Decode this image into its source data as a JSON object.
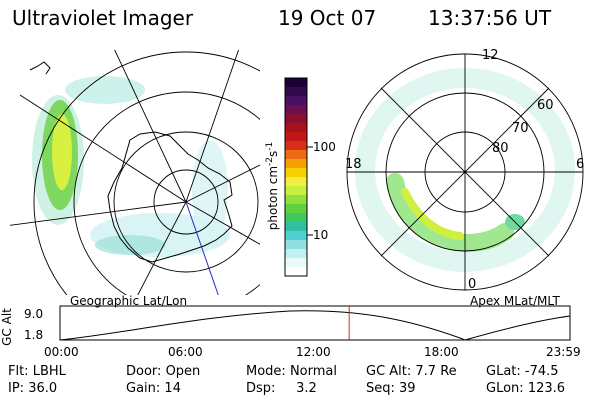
{
  "header": {
    "title": "Ultraviolet Imager",
    "date": "19 Oct 07",
    "time": "13:37:56 UT"
  },
  "left_panel": {
    "label": "Geographic Lat/Lon"
  },
  "right_panel": {
    "label": "Apex MLat/MLT",
    "mlt_labels": {
      "top": "12",
      "bottom": "0",
      "left": "18",
      "right": "6"
    },
    "lat_labels": [
      "60",
      "70",
      "80"
    ]
  },
  "colorbar": {
    "unit_label": "photon cm",
    "unit_sup1": "-2",
    "unit_mid": "s",
    "unit_sup2": "-1",
    "ticks": [
      "100",
      "10"
    ],
    "colors": [
      "#1a0033",
      "#300a4a",
      "#4a1060",
      "#6a1050",
      "#8a1030",
      "#a81020",
      "#c01818",
      "#d83018",
      "#ee6a10",
      "#f5a000",
      "#f8d000",
      "#f0f040",
      "#c8f040",
      "#90e040",
      "#60d040",
      "#40c860",
      "#30c0a0",
      "#50d0d0",
      "#90e0e0",
      "#c0f0f0",
      "#e8fafa",
      "#ffffff"
    ]
  },
  "altitude_strip": {
    "axis_label": "GC Alt",
    "y_ticks": [
      "9.0",
      "1.8"
    ],
    "x_ticks": [
      "00:00",
      "06:00",
      "12:00",
      "18:00",
      "23:59"
    ],
    "current_time_fraction": 0.567
  },
  "status": {
    "filter": {
      "label": "Flt:",
      "value": "LBHL"
    },
    "ip": {
      "label": "IP:",
      "value": "36.0"
    },
    "door": {
      "label": "Door:",
      "value": "Open"
    },
    "gain": {
      "label": "Gain:",
      "value": "14"
    },
    "mode": {
      "label": "Mode:",
      "value": "Normal"
    },
    "dsp": {
      "label": "Dsp:",
      "value": "3.2"
    },
    "gc_alt": {
      "label": "GC Alt:",
      "value": "7.7 Re"
    },
    "seq": {
      "label": "Seq:",
      "value": "39"
    },
    "glat": {
      "label": "GLat:",
      "value": "-74.5"
    },
    "glon": {
      "label": "GLon:",
      "value": "123.6"
    }
  }
}
